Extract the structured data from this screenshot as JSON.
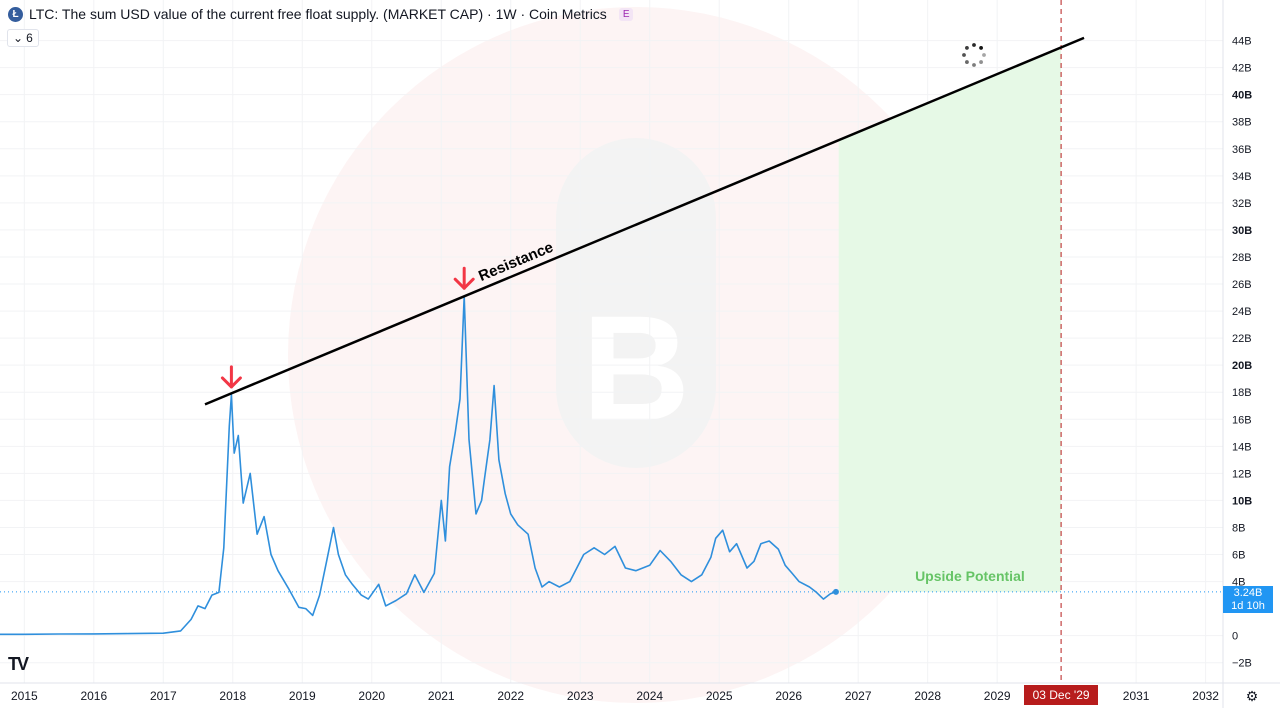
{
  "header": {
    "title": "LTC: The sum USD value of the current free float supply. (MARKET CAP) · 1W · Coin Metrics",
    "badge": "E",
    "collapse_count": "6"
  },
  "chart_data": {
    "type": "line",
    "series": [
      {
        "values": [
          [
            2014.0,
            0.13
          ],
          [
            2014.5,
            0.1
          ],
          [
            2015.0,
            0.1
          ],
          [
            2015.5,
            0.12
          ],
          [
            2016.0,
            0.13
          ],
          [
            2016.5,
            0.15
          ],
          [
            2017.0,
            0.18
          ],
          [
            2017.25,
            0.35
          ],
          [
            2017.4,
            1.2
          ],
          [
            2017.5,
            2.2
          ],
          [
            2017.6,
            2.0
          ],
          [
            2017.7,
            3.0
          ],
          [
            2017.8,
            3.2
          ],
          [
            2017.87,
            6.5
          ],
          [
            2017.95,
            15.5
          ],
          [
            2017.98,
            17.8
          ],
          [
            2018.02,
            13.5
          ],
          [
            2018.08,
            14.8
          ],
          [
            2018.15,
            9.8
          ],
          [
            2018.25,
            12.0
          ],
          [
            2018.35,
            7.5
          ],
          [
            2018.45,
            8.8
          ],
          [
            2018.55,
            6.0
          ],
          [
            2018.65,
            4.8
          ],
          [
            2018.8,
            3.5
          ],
          [
            2018.95,
            2.1
          ],
          [
            2019.05,
            2.0
          ],
          [
            2019.15,
            1.5
          ],
          [
            2019.25,
            3.0
          ],
          [
            2019.35,
            5.5
          ],
          [
            2019.45,
            8.0
          ],
          [
            2019.52,
            6.0
          ],
          [
            2019.62,
            4.5
          ],
          [
            2019.72,
            3.8
          ],
          [
            2019.85,
            3.0
          ],
          [
            2019.95,
            2.7
          ],
          [
            2020.1,
            3.8
          ],
          [
            2020.2,
            2.2
          ],
          [
            2020.35,
            2.6
          ],
          [
            2020.5,
            3.1
          ],
          [
            2020.62,
            4.5
          ],
          [
            2020.75,
            3.2
          ],
          [
            2020.9,
            4.6
          ],
          [
            2021.0,
            10.0
          ],
          [
            2021.06,
            7.0
          ],
          [
            2021.12,
            12.5
          ],
          [
            2021.2,
            15.0
          ],
          [
            2021.27,
            17.5
          ],
          [
            2021.33,
            25.1
          ],
          [
            2021.4,
            14.5
          ],
          [
            2021.5,
            9.0
          ],
          [
            2021.58,
            10.0
          ],
          [
            2021.62,
            11.5
          ],
          [
            2021.7,
            14.5
          ],
          [
            2021.76,
            18.5
          ],
          [
            2021.83,
            13.0
          ],
          [
            2021.92,
            10.5
          ],
          [
            2022.0,
            9.0
          ],
          [
            2022.1,
            8.2
          ],
          [
            2022.25,
            7.5
          ],
          [
            2022.35,
            5.0
          ],
          [
            2022.45,
            3.6
          ],
          [
            2022.55,
            4.0
          ],
          [
            2022.7,
            3.6
          ],
          [
            2022.85,
            4.0
          ],
          [
            2022.95,
            5.0
          ],
          [
            2023.05,
            6.0
          ],
          [
            2023.2,
            6.5
          ],
          [
            2023.35,
            6.0
          ],
          [
            2023.5,
            6.6
          ],
          [
            2023.65,
            5.0
          ],
          [
            2023.8,
            4.8
          ],
          [
            2024.0,
            5.2
          ],
          [
            2024.15,
            6.3
          ],
          [
            2024.3,
            5.5
          ],
          [
            2024.45,
            4.5
          ],
          [
            2024.6,
            4.0
          ],
          [
            2024.75,
            4.5
          ],
          [
            2024.88,
            5.8
          ],
          [
            2024.95,
            7.2
          ],
          [
            2025.05,
            7.8
          ],
          [
            2025.15,
            6.2
          ],
          [
            2025.25,
            6.8
          ],
          [
            2025.4,
            5.0
          ],
          [
            2025.5,
            5.5
          ],
          [
            2025.6,
            6.8
          ],
          [
            2025.72,
            7.0
          ],
          [
            2025.85,
            6.4
          ],
          [
            2025.95,
            5.2
          ],
          [
            2026.05,
            4.6
          ],
          [
            2026.15,
            4.0
          ],
          [
            2026.3,
            3.6
          ],
          [
            2026.4,
            3.2
          ],
          [
            2026.5,
            2.7
          ],
          [
            2026.6,
            3.1
          ],
          [
            2026.68,
            3.24
          ]
        ]
      }
    ],
    "y_ticks": [
      "44B",
      "42B",
      "40B",
      "38B",
      "36B",
      "34B",
      "32B",
      "30B",
      "28B",
      "26B",
      "24B",
      "22B",
      "20B",
      "18B",
      "16B",
      "14B",
      "12B",
      "10B",
      "8B",
      "6B",
      "4B",
      "0",
      "−2B"
    ],
    "y_tick_values": [
      44,
      42,
      40,
      38,
      36,
      34,
      32,
      30,
      28,
      26,
      24,
      22,
      20,
      18,
      16,
      14,
      12,
      10,
      8,
      6,
      4,
      0,
      -2
    ],
    "bold_y_ticks": [
      "40B",
      "30B",
      "20B",
      "10B"
    ],
    "x_ticks": [
      "2015",
      "2016",
      "2017",
      "2018",
      "2019",
      "2020",
      "2021",
      "2022",
      "2023",
      "2024",
      "2025",
      "2026",
      "2027",
      "2028",
      "2029",
      "2031",
      "2032"
    ],
    "x_tick_values": [
      2015,
      2016,
      2017,
      2018,
      2019,
      2020,
      2021,
      2022,
      2023,
      2024,
      2025,
      2026,
      2027,
      2028,
      2029,
      2031,
      2032
    ],
    "ylim": [
      -3.5,
      47
    ],
    "xlim": [
      2014.65,
      2032.25
    ],
    "last_value": 3.24,
    "last_value_label": "3.24B",
    "countdown_label": "1d 10h",
    "crosshair_date_label": "03 Dec '29",
    "crosshair_x": 2029.92,
    "resistance_line": {
      "start": [
        2017.6,
        17.1
      ],
      "end": [
        2030.25,
        44.2
      ],
      "label": "Resistance"
    },
    "peak_markers": [
      [
        2017.98,
        17.8
      ],
      [
        2021.33,
        25.1
      ]
    ],
    "upside_zone": {
      "x_start": 2026.72,
      "x_end": 2029.92,
      "y_base": 3.24,
      "label": "Upside Potential"
    },
    "colors": {
      "line": "#2f8fdc",
      "resistance": "#000000",
      "arrows": "#f23645",
      "upside_fill": "#e6f9e6",
      "upside_label": "#66c466",
      "price_badge": "#2196f3",
      "date_badge": "#b71c1c",
      "grid": "#f2f3f5",
      "axis_text": "#131722"
    }
  }
}
